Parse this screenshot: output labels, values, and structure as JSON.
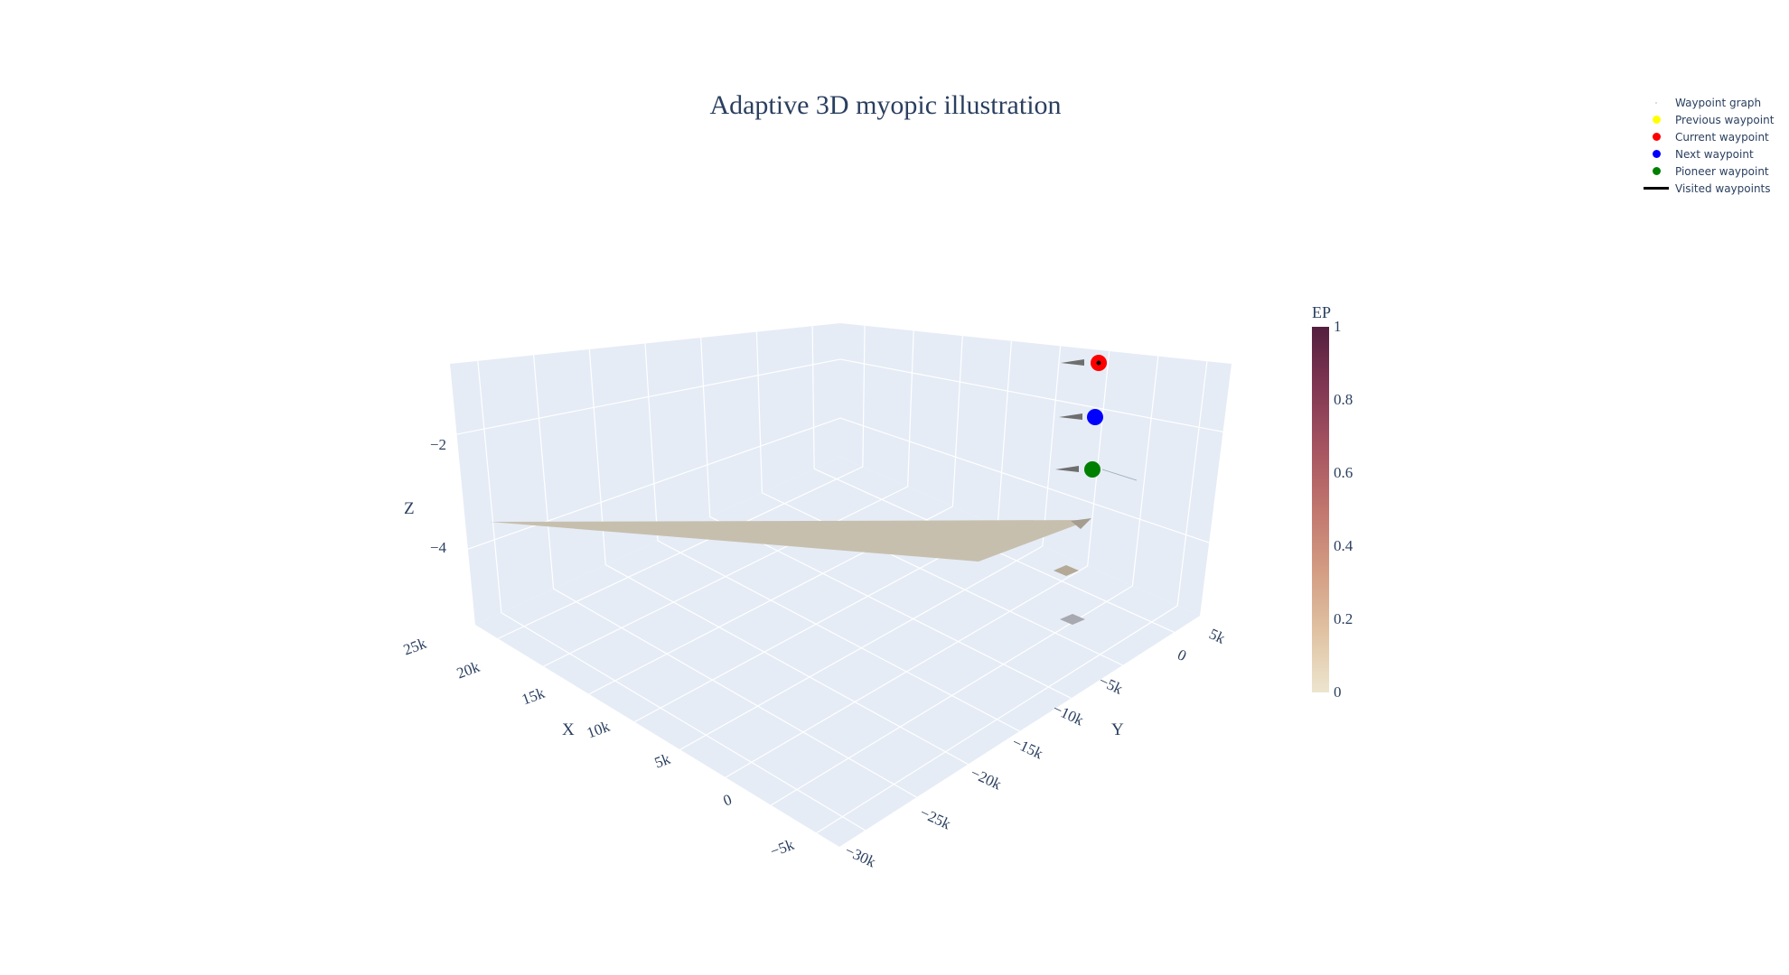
{
  "title": "Adaptive 3D myopic illustration",
  "chart_data": {
    "type": "scatter3d",
    "title": "Adaptive 3D myopic illustration",
    "axes": {
      "x": {
        "title": "X",
        "ticks": [
          "−5k",
          "0",
          "5k",
          "10k",
          "15k",
          "20k",
          "25k"
        ]
      },
      "y": {
        "title": "Y",
        "ticks": [
          "−30k",
          "−25k",
          "−20k",
          "−15k",
          "−10k",
          "−5k",
          "0",
          "5k"
        ]
      },
      "z": {
        "title": "Z",
        "ticks": [
          "−4",
          "−2"
        ]
      }
    },
    "grid": true,
    "legend_placement": "top-right",
    "legend": [
      {
        "name": "Waypoint graph",
        "marker": "dot-faint",
        "color": "#c9d3e0"
      },
      {
        "name": "Previous waypoint",
        "marker": "dot",
        "color": "#ffff00"
      },
      {
        "name": "Current waypoint",
        "marker": "dot",
        "color": "#ff0000"
      },
      {
        "name": "Next waypoint",
        "marker": "dot",
        "color": "#0000ff"
      },
      {
        "name": "Pioneer waypoint",
        "marker": "dot",
        "color": "#008000"
      },
      {
        "name": "Visited waypoints",
        "marker": "line",
        "color": "#000000"
      }
    ],
    "waypoints": [
      {
        "name": "Current waypoint",
        "color": "#ff0000",
        "z": -1.0
      },
      {
        "name": "Next waypoint",
        "color": "#0000ff",
        "z": -2.0
      },
      {
        "name": "Pioneer waypoint",
        "color": "#008000",
        "z": -3.0
      }
    ],
    "colorbar": {
      "title": "EP",
      "range": [
        0,
        1
      ],
      "ticks": [
        "0",
        "0.2",
        "0.4",
        "0.6",
        "0.8",
        "1"
      ],
      "colors": [
        "#ede5cf",
        "#e0c2a2",
        "#d39c83",
        "#c1766e",
        "#a65461",
        "#813753",
        "#541f3f"
      ]
    },
    "surface_color": "#c7bfae"
  }
}
